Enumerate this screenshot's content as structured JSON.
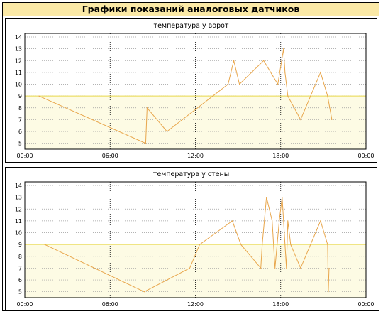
{
  "header": {
    "title": "Графики показаний аналоговых датчиков"
  },
  "colors": {
    "line": "#e8a64c",
    "threshold": "#e8d84a",
    "band": "#fdfbe4",
    "grid": "#000000",
    "minor_grid": "#9a9a9a"
  },
  "chart_data": [
    {
      "type": "line",
      "title": "температура у ворот",
      "xlabel": "",
      "ylabel": "",
      "x_unit": "hours",
      "xlim": [
        0,
        24
      ],
      "ylim": [
        4.5,
        14.3
      ],
      "x_ticks": [
        "00:00",
        "06:00",
        "12:00",
        "18:00",
        "00:00"
      ],
      "y_ticks": [
        5,
        6,
        7,
        8,
        9,
        10,
        11,
        12,
        13,
        14
      ],
      "threshold": 9,
      "grid": true,
      "series": [
        {
          "x": [
            1.0,
            8.5,
            8.6,
            10.0,
            14.3,
            14.7,
            15.1,
            16.8,
            17.8,
            18.2,
            18.3,
            18.5,
            19.4,
            20.8,
            21.3,
            21.6
          ],
          "y": [
            9.0,
            5.0,
            8.0,
            6.0,
            10.0,
            12.0,
            10.0,
            12.0,
            10.0,
            13.0,
            11.0,
            9.0,
            7.0,
            11.0,
            9.0,
            7.0
          ]
        }
      ]
    },
    {
      "type": "line",
      "title": "температура у стены",
      "xlabel": "",
      "ylabel": "",
      "x_unit": "hours",
      "xlim": [
        0,
        24
      ],
      "ylim": [
        4.5,
        14.3
      ],
      "x_ticks": [
        "00:00",
        "06:00",
        "12:00",
        "18:00",
        "00:00"
      ],
      "y_ticks": [
        5,
        6,
        7,
        8,
        9,
        10,
        11,
        12,
        13,
        14
      ],
      "threshold": 9,
      "grid": true,
      "series": [
        {
          "x": [
            1.4,
            8.4,
            11.6,
            12.3,
            14.6,
            15.2,
            16.6,
            16.7,
            17.0,
            17.4,
            17.6,
            17.9,
            18.1,
            18.4,
            18.5,
            18.7,
            19.4,
            20.8,
            21.3,
            21.35,
            21.4
          ],
          "y": [
            9.0,
            5.0,
            7.0,
            9.0,
            11.0,
            9.0,
            7.0,
            9.0,
            13.0,
            11.0,
            7.0,
            11.0,
            13.0,
            7.0,
            11.0,
            9.0,
            7.0,
            11.0,
            9.0,
            5.0,
            7.0
          ]
        }
      ]
    }
  ]
}
